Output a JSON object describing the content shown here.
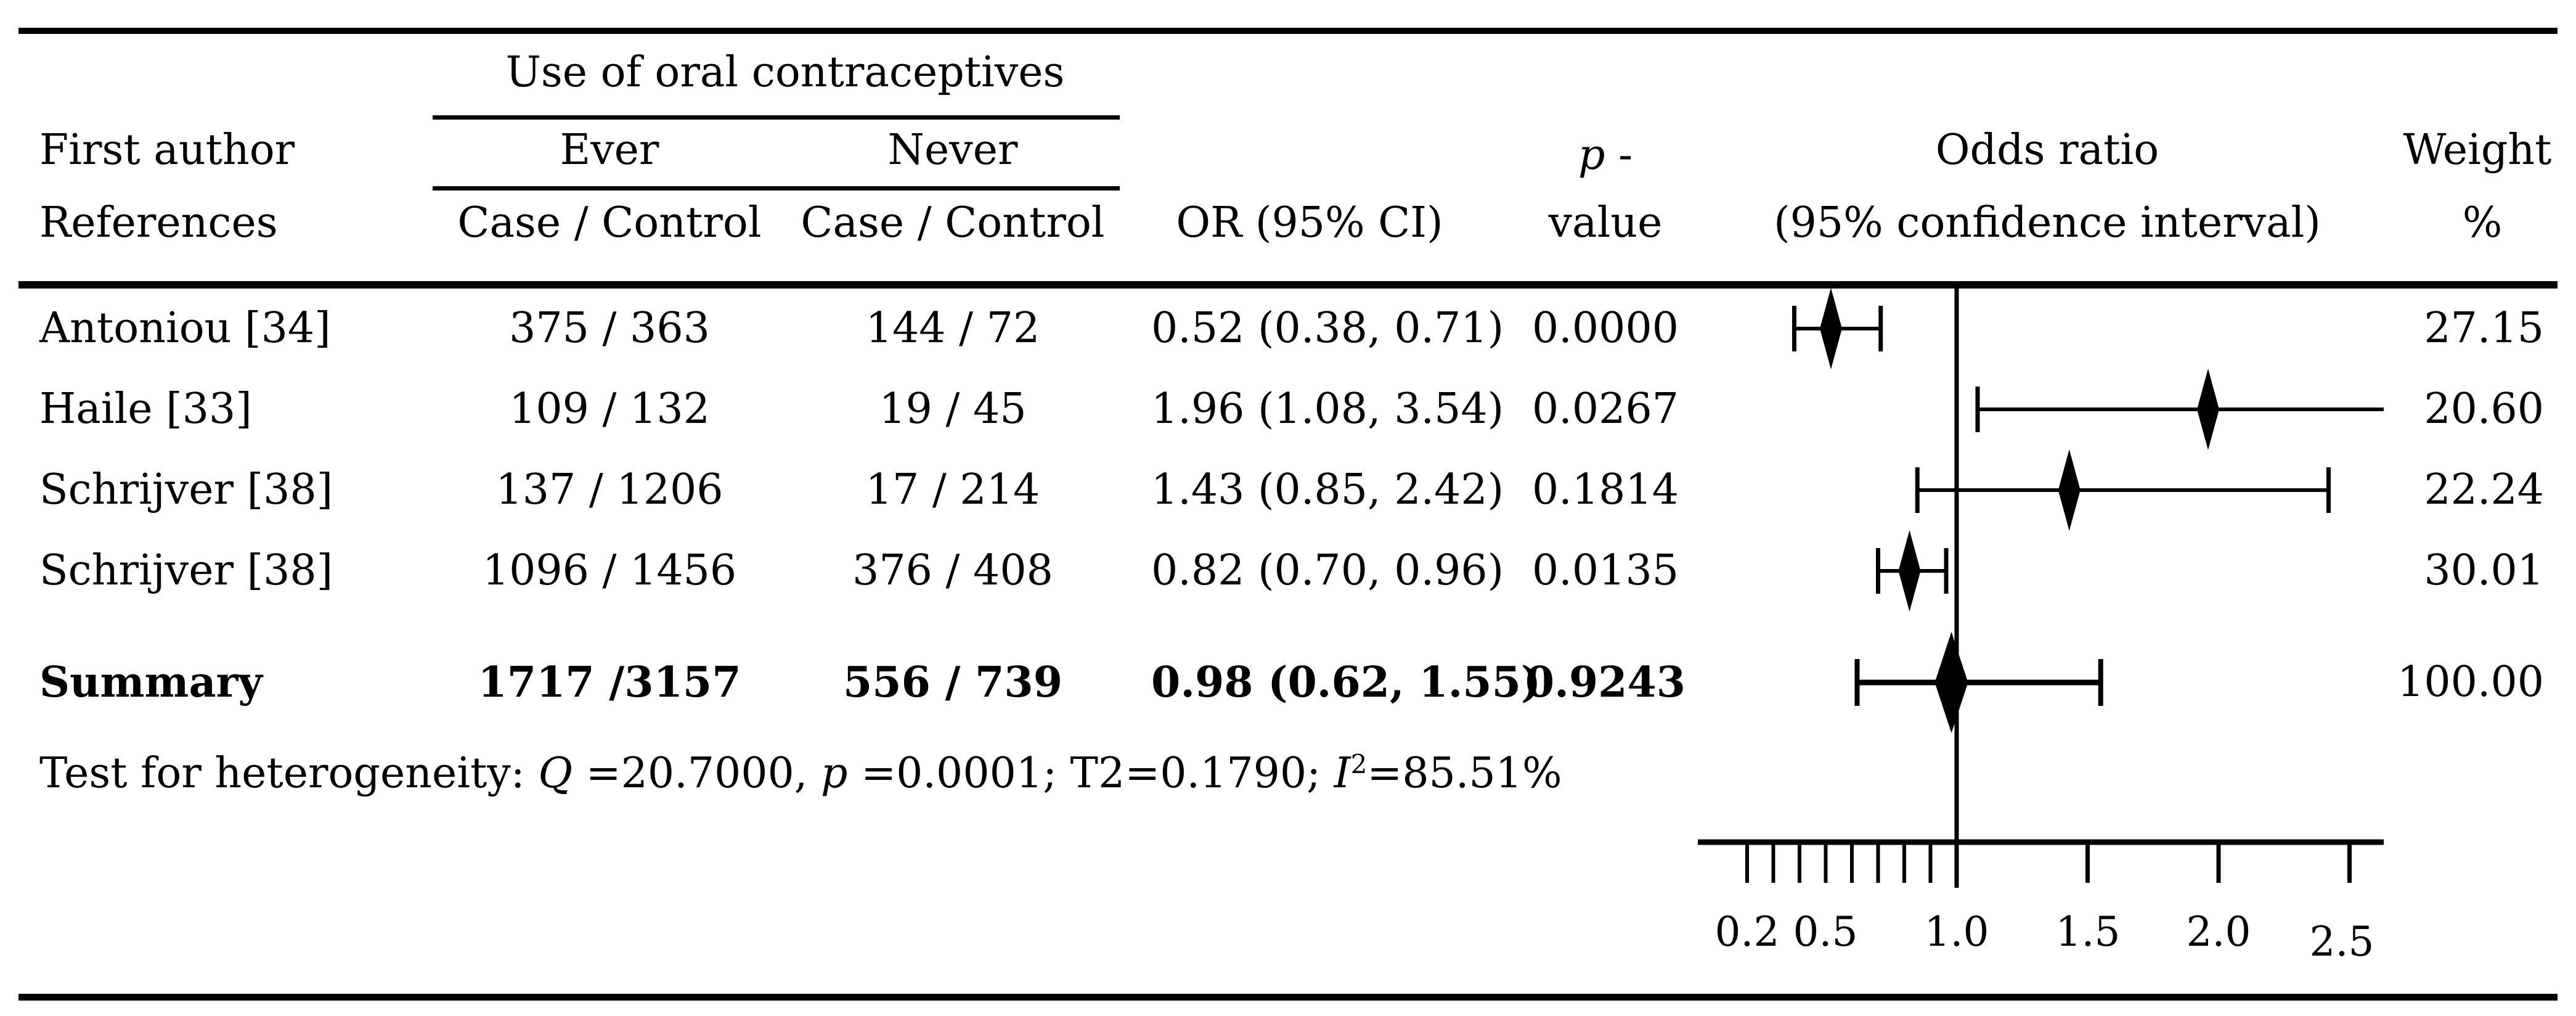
{
  "header": {
    "group": "Use of oral contraceptives",
    "col_author_line1": "First author",
    "col_author_line2": "References",
    "ever": "Ever",
    "never": "Never",
    "case_control_ever": "Case / Control",
    "case_control_never": "Case / Control",
    "or_ci": "OR (95% CI)",
    "p_line1": "p",
    "p_dash": " -",
    "p_line2": "value",
    "odds_ratio_line1": "Odds ratio",
    "odds_ratio_line2": "(95% confidence interval)",
    "weight_line1": "Weight",
    "weight_line2": "%"
  },
  "rows": [
    {
      "author": "Antoniou [34]",
      "ever": "375 / 363",
      "never": "144 / 72",
      "or_ci": "0.52 (0.38, 0.71)",
      "p": "0.0000",
      "weight": "27.15"
    },
    {
      "author": "Haile [33]",
      "ever": "109 / 132",
      "never": "19 / 45",
      "or_ci": "1.96 (1.08, 3.54)",
      "p": "0.0267",
      "weight": "20.60"
    },
    {
      "author": "Schrijver [38]",
      "ever": "137 / 1206",
      "never": "17 / 214",
      "or_ci": "1.43 (0.85, 2.42)",
      "p": "0.1814",
      "weight": "22.24"
    },
    {
      "author": "Schrijver [38]",
      "ever": "1096 / 1456",
      "never": "376 / 408",
      "or_ci": "0.82 (0.70, 0.96)",
      "p": "0.0135",
      "weight": "30.01"
    }
  ],
  "summary_row": {
    "author": "Summary",
    "ever": "1717 /3157",
    "never": "556 / 739",
    "or_ci": "0.98 (0.62, 1.55)",
    "p": "0.9243",
    "weight": "100.00"
  },
  "heterogeneity": {
    "seg1": "Test for heterogeneity: ",
    "q": "Q",
    "seg2": " =20.7000, ",
    "p": "p",
    "seg3": " =0.0001; T2=0.1790; ",
    "i": "I",
    "sup": "2",
    "seg4": "=85.51%"
  },
  "chart_data": {
    "type": "forest",
    "title": "Odds ratio (95% confidence interval)",
    "reference_line": 1.0,
    "axis": {
      "min": 0.2,
      "max": 2.5,
      "scale": "linear",
      "minor_ticks": [
        0.2,
        0.3,
        0.4,
        0.5,
        0.6,
        0.7,
        0.8,
        0.9
      ],
      "major_ticks": [
        1.5,
        2.0,
        2.5
      ],
      "tick_labels": [
        {
          "value": 0.2,
          "label": "0.2"
        },
        {
          "value": 0.5,
          "label": "0.5"
        },
        {
          "value": 1.0,
          "label": "1.0"
        },
        {
          "value": 1.5,
          "label": "1.5"
        },
        {
          "value": 2.0,
          "label": "2.0"
        },
        {
          "value": 2.5,
          "label": "2.5"
        }
      ]
    },
    "studies": [
      {
        "name": "Antoniou [34]",
        "or": 0.52,
        "ci_low": 0.38,
        "ci_high": 0.71,
        "p": 0.0,
        "weight": 27.15
      },
      {
        "name": "Haile [33]",
        "or": 1.96,
        "ci_low": 1.08,
        "ci_high": 3.54,
        "p": 0.0267,
        "weight": 20.6
      },
      {
        "name": "Schrijver [38]",
        "or": 1.43,
        "ci_low": 0.85,
        "ci_high": 2.42,
        "p": 0.1814,
        "weight": 22.24
      },
      {
        "name": "Schrijver [38]",
        "or": 0.82,
        "ci_low": 0.7,
        "ci_high": 0.96,
        "p": 0.0135,
        "weight": 30.01
      }
    ],
    "summary": {
      "name": "Summary",
      "or": 0.98,
      "ci_low": 0.62,
      "ci_high": 1.55,
      "p": 0.9243,
      "weight": 100.0
    },
    "heterogeneity": {
      "Q": 20.7,
      "p": 0.0001,
      "T2": 0.179,
      "I2_percent": 85.51
    }
  }
}
